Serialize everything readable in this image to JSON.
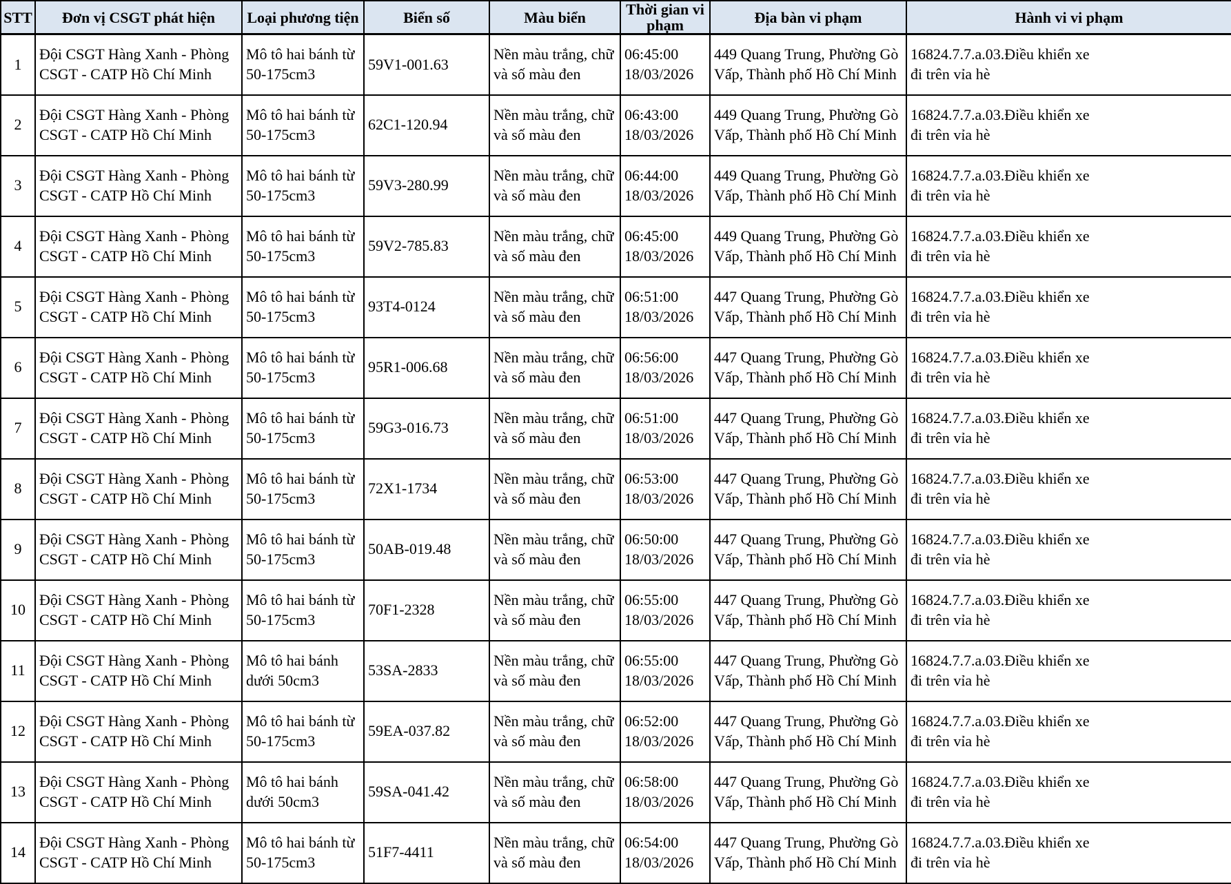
{
  "table": {
    "columns": [
      "STT",
      "Đơn vị CSGT phát hiện",
      "Loại phương tiện",
      "Biển số",
      "Màu biển",
      "Thời gian vi phạm",
      "Địa bàn vi phạm",
      "Hành vi vi phạm"
    ],
    "rows": [
      {
        "stt": "1",
        "unit": "Đội CSGT Hàng Xanh - Phòng CSGT - CATP Hồ Chí Minh",
        "vehicle": "Mô tô hai bánh từ 50-175cm3",
        "plate": "59V1-001.63",
        "plate_color": "Nền màu trắng, chữ và số màu đen",
        "time": "06:45:00",
        "date": "18/03/2026",
        "address": "449 Quang Trung, Phường Gò Vấp, Thành phố Hồ Chí Minh",
        "violation": "16824.7.7.a.03.Điều khiển xe đi trên vỉa hè"
      },
      {
        "stt": "2",
        "unit": "Đội CSGT Hàng Xanh - Phòng CSGT - CATP Hồ Chí Minh",
        "vehicle": "Mô tô hai bánh từ 50-175cm3",
        "plate": "62C1-120.94",
        "plate_color": "Nền màu trắng, chữ và số màu đen",
        "time": "06:43:00",
        "date": "18/03/2026",
        "address": "449 Quang Trung, Phường Gò Vấp, Thành phố Hồ Chí Minh",
        "violation": "16824.7.7.a.03.Điều khiển xe đi trên vỉa hè"
      },
      {
        "stt": "3",
        "unit": "Đội CSGT Hàng Xanh - Phòng CSGT - CATP Hồ Chí Minh",
        "vehicle": "Mô tô hai bánh từ 50-175cm3",
        "plate": "59V3-280.99",
        "plate_color": "Nền màu trắng, chữ và số màu đen",
        "time": "06:44:00",
        "date": "18/03/2026",
        "address": "449 Quang Trung, Phường Gò Vấp, Thành phố Hồ Chí Minh",
        "violation": "16824.7.7.a.03.Điều khiển xe đi trên vỉa hè"
      },
      {
        "stt": "4",
        "unit": "Đội CSGT Hàng Xanh - Phòng CSGT - CATP Hồ Chí Minh",
        "vehicle": "Mô tô hai bánh từ 50-175cm3",
        "plate": "59V2-785.83",
        "plate_color": "Nền màu trắng, chữ và số màu đen",
        "time": "06:45:00",
        "date": "18/03/2026",
        "address": "449 Quang Trung, Phường Gò Vấp, Thành phố Hồ Chí Minh",
        "violation": "16824.7.7.a.03.Điều khiển xe đi trên vỉa hè"
      },
      {
        "stt": "5",
        "unit": "Đội CSGT Hàng Xanh - Phòng CSGT - CATP Hồ Chí Minh",
        "vehicle": "Mô tô hai bánh từ 50-175cm3",
        "plate": "93T4-0124",
        "plate_color": "Nền màu trắng, chữ và số màu đen",
        "time": "06:51:00",
        "date": "18/03/2026",
        "address": "447 Quang Trung, Phường Gò Vấp, Thành phố Hồ Chí Minh",
        "violation": "16824.7.7.a.03.Điều khiển xe đi trên vỉa hè"
      },
      {
        "stt": "6",
        "unit": "Đội CSGT Hàng Xanh - Phòng CSGT - CATP Hồ Chí Minh",
        "vehicle": "Mô tô hai bánh từ 50-175cm3",
        "plate": "95R1-006.68",
        "plate_color": "Nền màu trắng, chữ và số màu đen",
        "time": "06:56:00",
        "date": "18/03/2026",
        "address": "447 Quang Trung, Phường Gò Vấp, Thành phố Hồ Chí Minh",
        "violation": "16824.7.7.a.03.Điều khiển xe đi trên vỉa hè"
      },
      {
        "stt": "7",
        "unit": "Đội CSGT Hàng Xanh - Phòng CSGT - CATP Hồ Chí Minh",
        "vehicle": "Mô tô hai bánh từ 50-175cm3",
        "plate": "59G3-016.73",
        "plate_color": "Nền màu trắng, chữ và số màu đen",
        "time": "06:51:00",
        "date": "18/03/2026",
        "address": "447 Quang Trung, Phường Gò Vấp, Thành phố Hồ Chí Minh",
        "violation": "16824.7.7.a.03.Điều khiển xe đi trên vỉa hè"
      },
      {
        "stt": "8",
        "unit": "Đội CSGT Hàng Xanh - Phòng CSGT - CATP Hồ Chí Minh",
        "vehicle": "Mô tô hai bánh từ 50-175cm3",
        "plate": "72X1-1734",
        "plate_color": "Nền màu trắng, chữ và số màu đen",
        "time": "06:53:00",
        "date": "18/03/2026",
        "address": "447 Quang Trung, Phường Gò Vấp, Thành phố Hồ Chí Minh",
        "violation": "16824.7.7.a.03.Điều khiển xe đi trên vỉa hè"
      },
      {
        "stt": "9",
        "unit": "Đội CSGT Hàng Xanh - Phòng CSGT - CATP Hồ Chí Minh",
        "vehicle": "Mô tô hai bánh từ 50-175cm3",
        "plate": "50AB-019.48",
        "plate_color": "Nền màu trắng, chữ và số màu đen",
        "time": "06:50:00",
        "date": "18/03/2026",
        "address": "447 Quang Trung, Phường Gò Vấp, Thành phố Hồ Chí Minh",
        "violation": "16824.7.7.a.03.Điều khiển xe đi trên vỉa hè"
      },
      {
        "stt": "10",
        "unit": "Đội CSGT Hàng Xanh - Phòng CSGT - CATP Hồ Chí Minh",
        "vehicle": "Mô tô hai bánh từ 50-175cm3",
        "plate": "70F1-2328",
        "plate_color": "Nền màu trắng, chữ và số màu đen",
        "time": "06:55:00",
        "date": "18/03/2026",
        "address": "447 Quang Trung, Phường Gò Vấp, Thành phố Hồ Chí Minh",
        "violation": "16824.7.7.a.03.Điều khiển xe đi trên vỉa hè"
      },
      {
        "stt": "11",
        "unit": "Đội CSGT Hàng Xanh - Phòng CSGT - CATP Hồ Chí Minh",
        "vehicle": "Mô tô hai bánh dưới 50cm3",
        "plate": "53SA-2833",
        "plate_color": "Nền màu trắng, chữ và số màu đen",
        "time": "06:55:00",
        "date": "18/03/2026",
        "address": "447 Quang Trung, Phường Gò Vấp, Thành phố Hồ Chí Minh",
        "violation": "16824.7.7.a.03.Điều khiển xe đi trên vỉa hè"
      },
      {
        "stt": "12",
        "unit": "Đội CSGT Hàng Xanh - Phòng CSGT - CATP Hồ Chí Minh",
        "vehicle": "Mô tô hai bánh từ 50-175cm3",
        "plate": "59EA-037.82",
        "plate_color": "Nền màu trắng, chữ và số màu đen",
        "time": "06:52:00",
        "date": "18/03/2026",
        "address": "447 Quang Trung, Phường Gò Vấp, Thành phố Hồ Chí Minh",
        "violation": "16824.7.7.a.03.Điều khiển xe đi trên vỉa hè"
      },
      {
        "stt": "13",
        "unit": "Đội CSGT Hàng Xanh - Phòng CSGT - CATP Hồ Chí Minh",
        "vehicle": "Mô tô hai bánh dưới 50cm3",
        "plate": "59SA-041.42",
        "plate_color": "Nền màu trắng, chữ và số màu đen",
        "time": "06:58:00",
        "date": "18/03/2026",
        "address": "447 Quang Trung, Phường Gò Vấp, Thành phố Hồ Chí Minh",
        "violation": "16824.7.7.a.03.Điều khiển xe đi trên vỉa hè"
      },
      {
        "stt": "14",
        "unit": "Đội CSGT Hàng Xanh - Phòng CSGT - CATP Hồ Chí Minh",
        "vehicle": "Mô tô hai bánh từ 50-175cm3",
        "plate": "51F7-4411",
        "plate_color": "Nền màu trắng, chữ và số màu đen",
        "time": "06:54:00",
        "date": "18/03/2026",
        "address": "447 Quang Trung, Phường Gò Vấp, Thành phố Hồ Chí Minh",
        "violation": "16824.7.7.a.03.Điều khiển xe đi trên vỉa hè"
      }
    ]
  },
  "colors": {
    "header_bg": "#dbe5f1",
    "border": "#000000",
    "text": "#000000",
    "row_bg": "#ffffff"
  }
}
